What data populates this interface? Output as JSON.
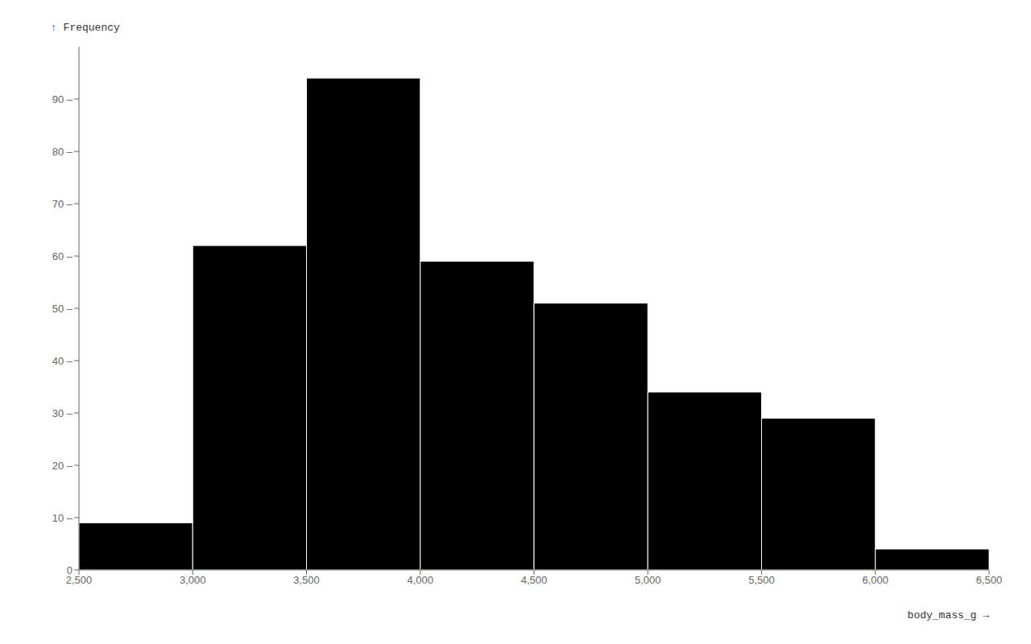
{
  "chart_data": {
    "type": "histogram",
    "bins": [
      2500,
      3000,
      3500,
      4000,
      4500,
      5000,
      5500,
      6000,
      6500
    ],
    "values": [
      9,
      62,
      94,
      59,
      51,
      34,
      29,
      4
    ],
    "color": "#000000",
    "x_label": "body_mass_g →",
    "y_label": "↑ Frequency",
    "xlim": [
      2500,
      6500
    ],
    "ylim": [
      0,
      100
    ],
    "xticks": [
      {
        "value": 2500,
        "label": "2,500"
      },
      {
        "value": 3000,
        "label": "3,000"
      },
      {
        "value": 3500,
        "label": "3,500"
      },
      {
        "value": 4000,
        "label": "4,000"
      },
      {
        "value": 4500,
        "label": "4,500"
      },
      {
        "value": 5000,
        "label": "5,000"
      },
      {
        "value": 5500,
        "label": "5,500"
      },
      {
        "value": 6000,
        "label": "6,000"
      },
      {
        "value": 6500,
        "label": "6,500"
      }
    ],
    "yticks": [
      0,
      {
        "value": 10,
        "label": "10 –"
      },
      {
        "value": 20,
        "label": "20 –"
      },
      {
        "value": 30,
        "label": "30 –"
      },
      {
        "value": 40,
        "label": "40 –"
      },
      {
        "value": 50,
        "label": "50 –"
      },
      {
        "value": 60,
        "label": "60 –"
      },
      {
        "value": 70,
        "label": "70 –"
      },
      {
        "value": 80,
        "label": "80 –"
      },
      {
        "value": 90,
        "label": "90 –"
      }
    ],
    "grid": false
  }
}
